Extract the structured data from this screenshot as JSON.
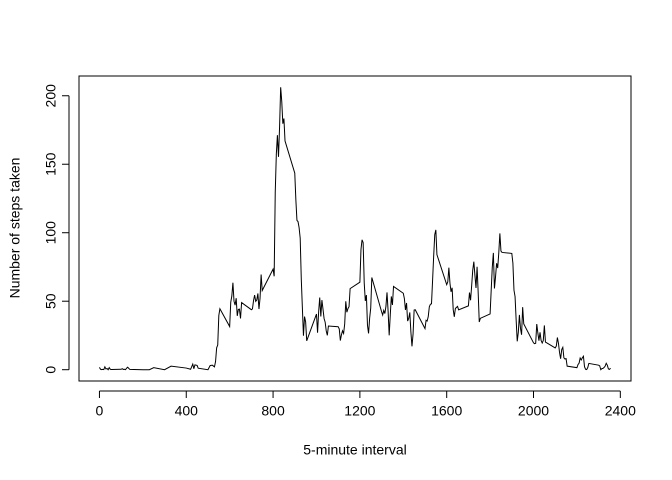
{
  "chart_data": {
    "type": "line",
    "x_label": "5-minute interval",
    "y_label": "Number of steps taken",
    "color": "#000000",
    "xlim": [
      -94.2,
      2449.2
    ],
    "ylim": [
      -8.25,
      214.42
    ],
    "xticks": [
      0,
      400,
      800,
      1200,
      1600,
      2000,
      2400
    ],
    "yticks": [
      0,
      50,
      100,
      150,
      200
    ],
    "grid": false,
    "x": [
      0,
      5,
      10,
      15,
      20,
      25,
      30,
      35,
      40,
      45,
      50,
      55,
      100,
      105,
      110,
      115,
      120,
      125,
      130,
      140,
      200,
      230,
      250,
      300,
      330,
      400,
      420,
      430,
      435,
      440,
      450,
      455,
      500,
      510,
      520,
      530,
      535,
      540,
      545,
      550,
      555,
      600,
      605,
      610,
      615,
      620,
      625,
      630,
      635,
      640,
      645,
      650,
      655,
      700,
      705,
      710,
      715,
      720,
      725,
      730,
      735,
      740,
      745,
      750,
      800,
      805,
      810,
      815,
      820,
      825,
      830,
      835,
      840,
      845,
      850,
      855,
      900,
      905,
      910,
      915,
      920,
      925,
      930,
      935,
      940,
      945,
      950,
      955,
      1000,
      1005,
      1010,
      1015,
      1020,
      1025,
      1030,
      1035,
      1040,
      1045,
      1050,
      1055,
      1100,
      1105,
      1110,
      1115,
      1120,
      1125,
      1130,
      1135,
      1140,
      1145,
      1150,
      1155,
      1200,
      1205,
      1210,
      1215,
      1220,
      1225,
      1230,
      1235,
      1240,
      1245,
      1250,
      1255,
      1300,
      1305,
      1310,
      1315,
      1320,
      1325,
      1330,
      1335,
      1340,
      1345,
      1350,
      1355,
      1400,
      1405,
      1410,
      1415,
      1420,
      1425,
      1430,
      1435,
      1440,
      1445,
      1450,
      1455,
      1500,
      1505,
      1510,
      1515,
      1520,
      1525,
      1530,
      1535,
      1540,
      1545,
      1550,
      1555,
      1600,
      1605,
      1610,
      1615,
      1620,
      1625,
      1630,
      1635,
      1640,
      1645,
      1650,
      1655,
      1700,
      1705,
      1710,
      1715,
      1720,
      1725,
      1730,
      1735,
      1740,
      1745,
      1750,
      1755,
      1800,
      1805,
      1810,
      1815,
      1820,
      1825,
      1830,
      1835,
      1840,
      1845,
      1850,
      1855,
      1900,
      1905,
      1910,
      1915,
      1920,
      1925,
      1930,
      1935,
      1940,
      1945,
      1950,
      1955,
      2000,
      2005,
      2010,
      2015,
      2020,
      2025,
      2030,
      2035,
      2040,
      2045,
      2050,
      2055,
      2100,
      2105,
      2110,
      2115,
      2120,
      2125,
      2130,
      2135,
      2140,
      2145,
      2150,
      2155,
      2200,
      2205,
      2210,
      2215,
      2220,
      2225,
      2230,
      2235,
      2240,
      2245,
      2250,
      2255,
      2300,
      2305,
      2310,
      2315,
      2320,
      2325,
      2330,
      2335,
      2340,
      2345,
      2350,
      2355
    ],
    "values": [
      1.7,
      0.3,
      0.1,
      0.2,
      0.1,
      2.1,
      0.5,
      0.9,
      0,
      1.5,
      0.3,
      0.1,
      0.3,
      0.7,
      0.2,
      0.3,
      0,
      1.1,
      1.8,
      0.2,
      0,
      0,
      1.5,
      0,
      2.6,
      1.2,
      0.3,
      4.1,
      0.7,
      3.5,
      3.1,
      1.1,
      0,
      3,
      3.3,
      2.1,
      6,
      16,
      18,
      39.5,
      44.5,
      31.5,
      49.3,
      53.8,
      63.5,
      50,
      47.1,
      52.2,
      39.3,
      44,
      44.2,
      37.4,
      49,
      43.8,
      44.4,
      50.5,
      54.5,
      49.9,
      50.9,
      55.7,
      44.3,
      52.3,
      69.5,
      57.8,
      73.4,
      68.2,
      129.4,
      157.5,
      171.2,
      155.4,
      177.3,
      206.2,
      195.9,
      179.6,
      183.4,
      167,
      143.5,
      124,
      109.1,
      108.1,
      103.7,
      95.97,
      66.2,
      45.2,
      24.8,
      38.8,
      34.98,
      21.1,
      40.6,
      26.98,
      42.4,
      52.7,
      38.9,
      50.8,
      44.3,
      37.4,
      34.7,
      28.3,
      25.1,
      31.9,
      31.4,
      29.7,
      21.3,
      25.5,
      28.4,
      26.5,
      33.4,
      49.98,
      42,
      44.6,
      46,
      59.2,
      63.9,
      87.7,
      94.8,
      92.8,
      63.4,
      50.2,
      54.5,
      32.4,
      26.5,
      37.7,
      45.1,
      67.3,
      42.3,
      39.9,
      43.3,
      40.98,
      46.2,
      56.4,
      42.8,
      25.1,
      39.97,
      53.5,
      47.3,
      60.8,
      55.8,
      51.96,
      43.6,
      48.7,
      35.5,
      37.5,
      41.8,
      27.5,
      17.1,
      26.1,
      43.6,
      43.8,
      30,
      36.1,
      35.5,
      38.8,
      45.96,
      47.8,
      48.1,
      65.3,
      82.9,
      98.7,
      102.1,
      83.96,
      62.1,
      64.1,
      74.5,
      63.2,
      56.9,
      59.8,
      43.9,
      38.6,
      44.7,
      45.5,
      46.2,
      43.7,
      46.6,
      56.3,
      50.7,
      61.2,
      72.7,
      78.9,
      68.9,
      59.7,
      75.1,
      56.5,
      34.8,
      37.5,
      40.7,
      58,
      74.7,
      85.3,
      59.3,
      67.8,
      77.7,
      74.2,
      85.3,
      99.5,
      86.6,
      85.6,
      84.9,
      77.8,
      58,
      53.4,
      36.3,
      20.7,
      27.4,
      40,
      30.2,
      25.5,
      45.7,
      33.5,
      19.6,
      19,
      19.3,
      33.3,
      26.8,
      21.2,
      27.3,
      21.3,
      19.5,
      21.3,
      32.3,
      20.2,
      15.9,
      17.2,
      23.5,
      19.2,
      12.5,
      8,
      14.7,
      16.3,
      8.7,
      7.8,
      8.1,
      2.6,
      1.5,
      3.7,
      4.8,
      8.5,
      7.1,
      8.7,
      9.8,
      2.2,
      0.3,
      0.1,
      1.6,
      4.6,
      3.3,
      2.8,
      0,
      0.8,
      0.96,
      1.6,
      2.6,
      4.7,
      3.3,
      0.6,
      0.2,
      1.1
    ]
  }
}
